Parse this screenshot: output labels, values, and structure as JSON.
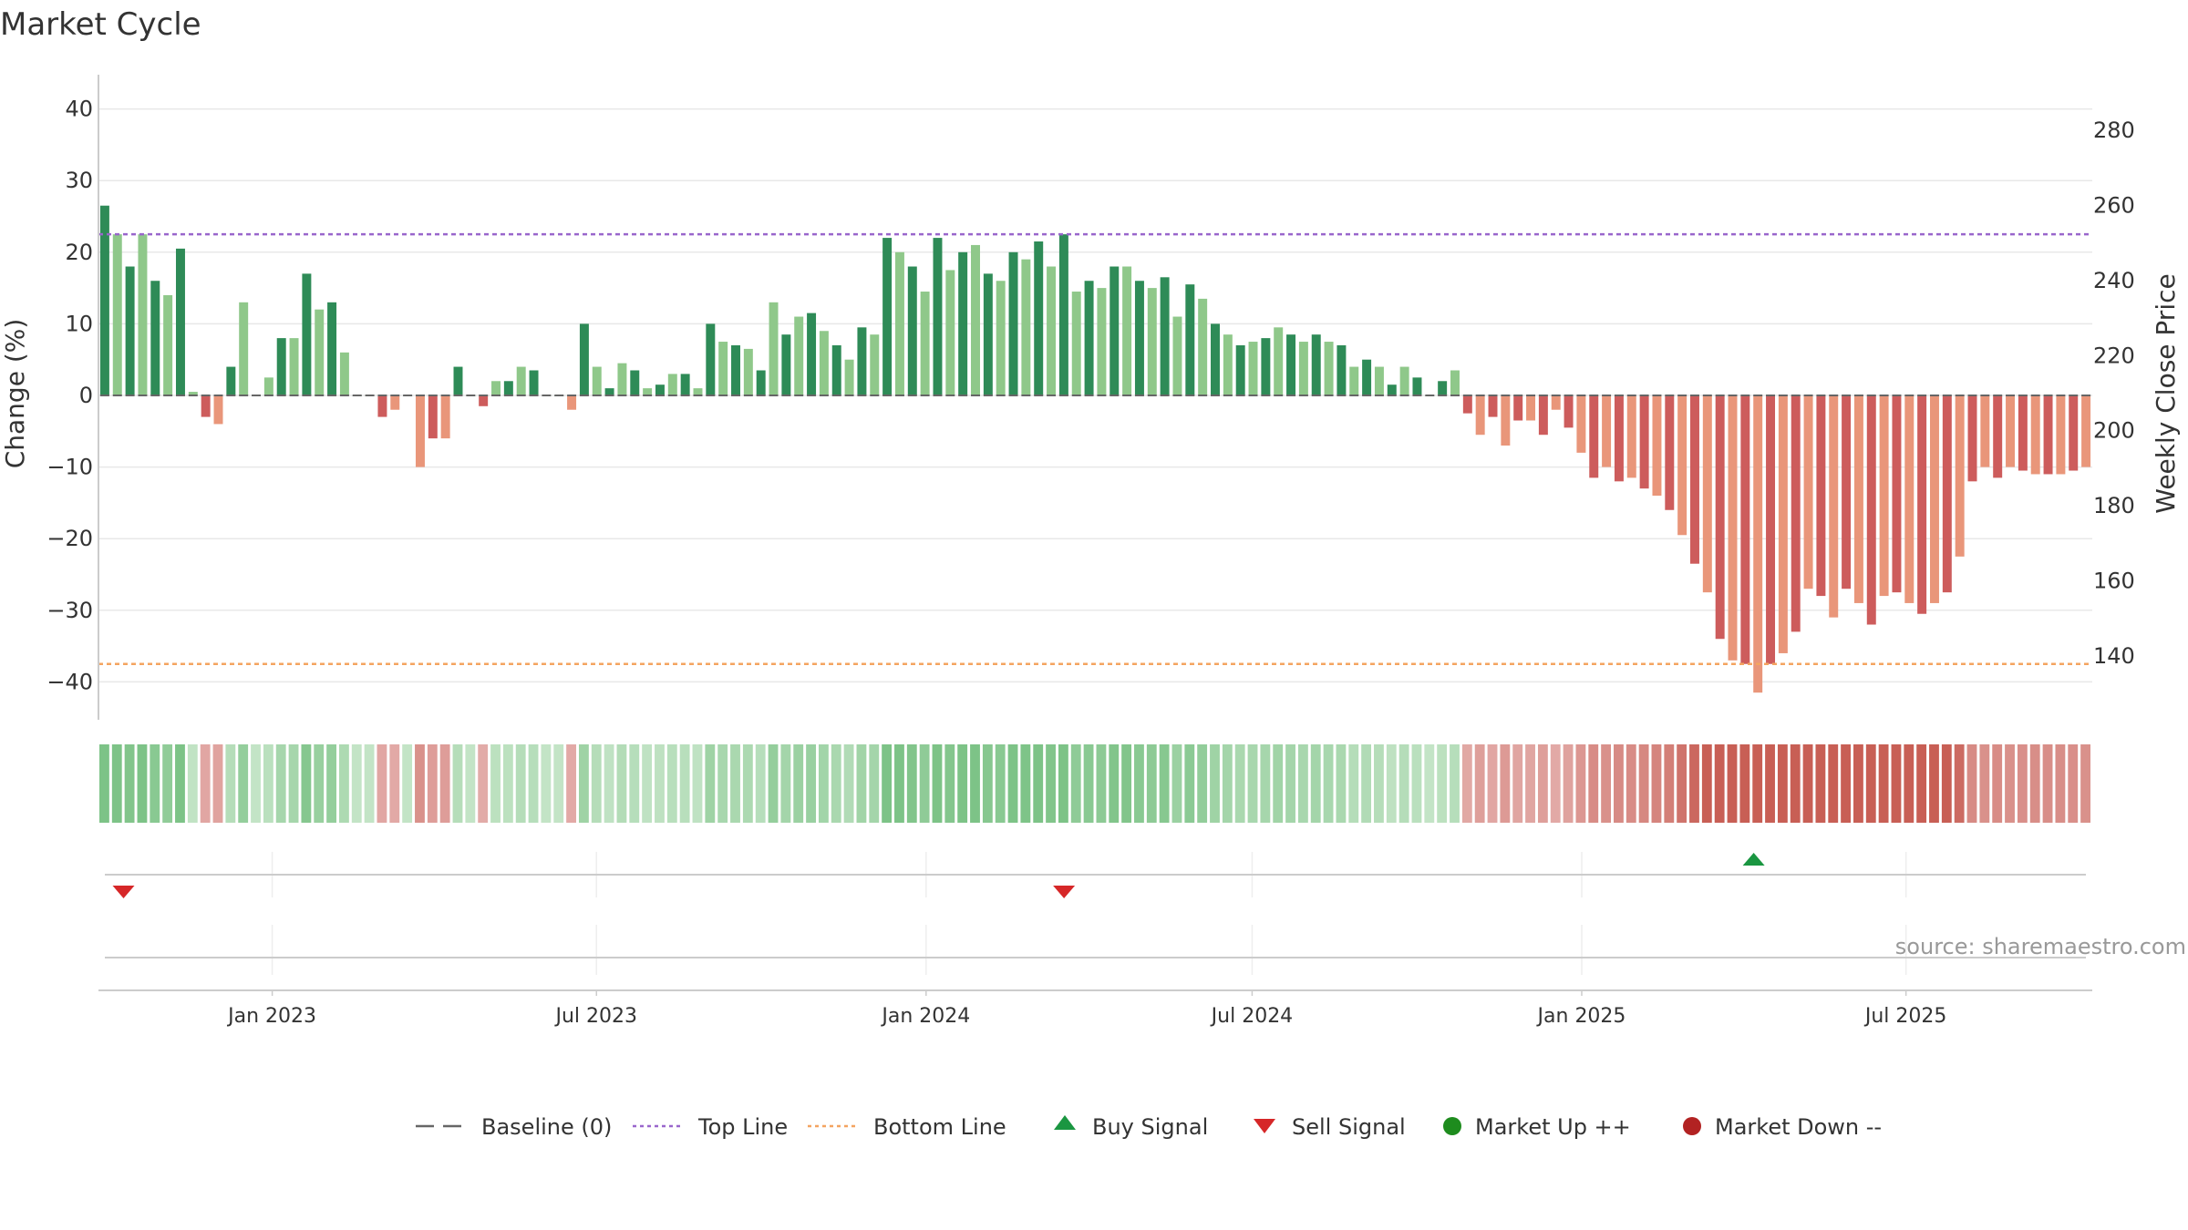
{
  "chart_data": {
    "type": "bar",
    "title": "Market Cycle",
    "ylabel": "Change (%)",
    "y2label": "Weekly Close Price",
    "ylim": [
      -45,
      45
    ],
    "y_ticks": [
      40,
      30,
      20,
      10,
      0,
      -10,
      -20,
      -30,
      -40
    ],
    "y_tick_labels": [
      "40",
      "30",
      "20",
      "10",
      "0",
      "−10",
      "−20",
      "−30",
      "−40"
    ],
    "y2lim": [
      130,
      290
    ],
    "y2_ticks": [
      280,
      260,
      240,
      220,
      200,
      180,
      160,
      140
    ],
    "y2_tick_labels": [
      "280",
      "260",
      "240",
      "220",
      "200",
      "180",
      "160",
      "140"
    ],
    "top_line": 22.5,
    "bottom_line": -37.5,
    "x_start": "2022-09-26",
    "x_end": "2025-10-13",
    "date_ticks": [
      {
        "date": "2023-01-01",
        "label": "Jan 2023"
      },
      {
        "date": "2023-07-01",
        "label": "Jul 2023"
      },
      {
        "date": "2024-01-01",
        "label": "Jan 2024"
      },
      {
        "date": "2024-07-01",
        "label": "Jul 2024"
      },
      {
        "date": "2025-01-01",
        "label": "Jan 2025"
      },
      {
        "date": "2025-07-01",
        "label": "Jul 2025"
      }
    ],
    "values": [
      26.5,
      22.5,
      18,
      22.5,
      16,
      14,
      20.5,
      0.5,
      -3,
      -4,
      4,
      13,
      0,
      2.5,
      8,
      8,
      17,
      12,
      13,
      6,
      0,
      0,
      -3,
      -2,
      0,
      -10,
      -6,
      -6,
      4,
      0,
      -1.5,
      2,
      2,
      4,
      3.5,
      0,
      0,
      -2,
      10,
      4,
      1,
      4.5,
      3.5,
      1,
      1.5,
      3,
      3,
      1,
      10,
      7.5,
      7,
      6.5,
      3.5,
      13,
      8.5,
      11,
      11.5,
      9,
      7,
      5,
      9.5,
      8.5,
      22,
      20,
      18,
      14.5,
      22,
      17.5,
      20,
      21,
      17,
      16,
      20,
      19,
      21.5,
      18,
      22.5,
      14.5,
      16,
      15,
      18,
      18,
      16,
      15,
      16.5,
      11,
      15.5,
      13.5,
      10,
      8.5,
      7,
      7.5,
      8,
      9.5,
      8.5,
      7.5,
      8.5,
      7.5,
      7,
      4,
      5,
      4,
      1.5,
      4,
      2.5,
      0,
      2,
      3.5,
      -2.5,
      -5.5,
      -3,
      -7,
      -3.5,
      -3.5,
      -5.5,
      -2,
      -4.5,
      -8,
      -11.5,
      -10,
      -12,
      -11.5,
      -13,
      -14,
      -16,
      -19.5,
      -23.5,
      -27.5,
      -34,
      -37,
      -37.5,
      -41.5,
      -37.5,
      -36,
      -33,
      -27,
      -28,
      -31,
      -27,
      -29,
      -32,
      -28,
      -27.5,
      -29,
      -30.5,
      -29,
      -27.5,
      -22.5,
      -12,
      -10,
      -11.5,
      -10,
      -10.5,
      -11,
      -11,
      -11,
      -10.5,
      -10
    ]
  },
  "signals": {
    "buy": [
      "2025-04-07"
    ],
    "sell": [
      "2022-10-10",
      "2024-03-18"
    ]
  },
  "legend": [
    {
      "label": "Baseline (0)",
      "icon": "baseline-dash-icon"
    },
    {
      "label": "Top Line",
      "icon": "top-line-dotted-icon"
    },
    {
      "label": "Bottom Line",
      "icon": "bottom-line-dotted-icon"
    },
    {
      "label": "Buy Signal",
      "icon": "up-triangle-icon"
    },
    {
      "label": "Sell Signal",
      "icon": "down-triangle-icon"
    },
    {
      "label": "Market Up ++",
      "icon": "green-circle-icon"
    },
    {
      "label": "Market Down --",
      "icon": "red-circle-icon"
    }
  ],
  "source": "source: sharemaestro.com",
  "colors": {
    "up_strong": "#2e8b57",
    "up_light": "#8fc88a",
    "down_strong": "#cd5c5c",
    "down_light": "#e9967a",
    "top_line": "#9966cc",
    "bottom_line": "#f4a460",
    "buy": "#1a9641",
    "sell": "#d62728",
    "market_up": "#1e8c1e",
    "market_down": "#b22222",
    "baseline": "#666666"
  }
}
